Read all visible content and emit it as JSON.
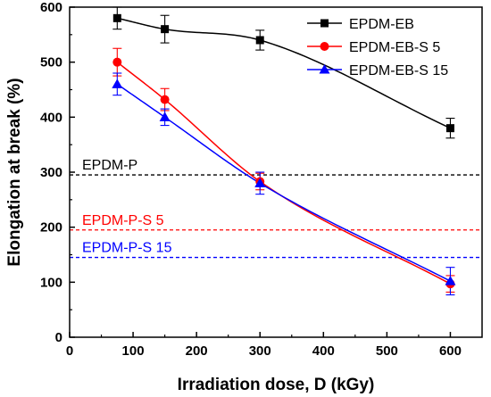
{
  "chart_data": {
    "type": "line",
    "xlabel": "Irradiation dose, D (kGy)",
    "ylabel": "Elongation at break (%)",
    "xlim": [
      0,
      650
    ],
    "ylim": [
      0,
      600
    ],
    "xticks": [
      0,
      100,
      200,
      300,
      400,
      500,
      600
    ],
    "yticks": [
      0,
      100,
      200,
      300,
      400,
      500,
      600
    ],
    "legend_position": "top-right",
    "series": [
      {
        "name": "EPDM-EB",
        "color": "#000000",
        "marker": "square",
        "x": [
          75,
          150,
          300,
          600
        ],
        "y": [
          580,
          560,
          540,
          380
        ],
        "err": [
          20,
          25,
          18,
          18
        ]
      },
      {
        "name": "EPDM-EB-S 5",
        "color": "#ff0000",
        "marker": "circle",
        "x": [
          75,
          150,
          300,
          600
        ],
        "y": [
          500,
          432,
          283,
          97
        ],
        "err": [
          25,
          20,
          15,
          15
        ]
      },
      {
        "name": "EPDM-EB-S 15",
        "color": "#0000ff",
        "marker": "triangle",
        "x": [
          75,
          150,
          300,
          600
        ],
        "y": [
          460,
          400,
          280,
          102
        ],
        "err": [
          20,
          15,
          20,
          25
        ]
      }
    ],
    "reference_lines": [
      {
        "label": "EPDM-P",
        "y": 295,
        "color": "#000000"
      },
      {
        "label": "EPDM-P-S 5",
        "y": 195,
        "color": "#ff0000"
      },
      {
        "label": "EPDM-P-S 15",
        "y": 145,
        "color": "#0000ff"
      }
    ]
  }
}
